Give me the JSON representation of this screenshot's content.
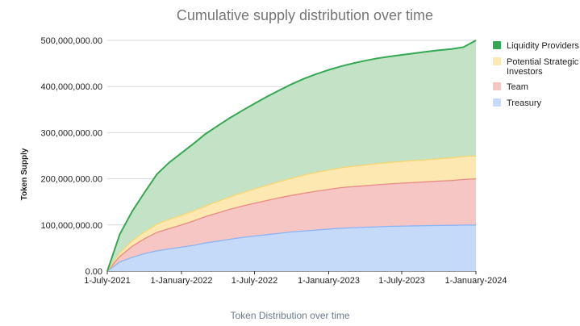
{
  "chart_data": {
    "type": "area",
    "stacked": true,
    "title": "Cumulative supply distribution over time",
    "ylabel": "Token Supply",
    "xlabel": "",
    "x_ticks": [
      "1-July-2021",
      "1-January-2022",
      "1-July-2022",
      "1-January-2023",
      "1-July-2023",
      "1-January-2024"
    ],
    "y_ticks": [
      "0.00",
      "100,000,000.00",
      "200,000,000.00",
      "300,000,000.00",
      "400,000,000.00",
      "500,000,000.00"
    ],
    "ylim": [
      0,
      500000000
    ],
    "grid": true,
    "legend_position": "right",
    "x": [
      "2021-07-01",
      "2021-08-01",
      "2021-09-01",
      "2021-10-01",
      "2021-11-01",
      "2021-12-01",
      "2022-01-01",
      "2022-02-01",
      "2022-03-01",
      "2022-04-01",
      "2022-05-01",
      "2022-06-01",
      "2022-07-01",
      "2022-08-01",
      "2022-09-01",
      "2022-10-01",
      "2022-11-01",
      "2022-12-01",
      "2023-01-01",
      "2023-02-01",
      "2023-03-01",
      "2023-04-01",
      "2023-05-01",
      "2023-06-01",
      "2023-07-01",
      "2023-08-01",
      "2023-09-01",
      "2023-10-01",
      "2023-11-01",
      "2023-12-01",
      "2024-01-01"
    ],
    "series": [
      {
        "name": "Treasury",
        "color": "#c5d9f8",
        "values": [
          0,
          20000000,
          30000000,
          38000000,
          44000000,
          48000000,
          52000000,
          56000000,
          61000000,
          65000000,
          69000000,
          73000000,
          76000000,
          79000000,
          82000000,
          85000000,
          87000000,
          89000000,
          91000000,
          93000000,
          94000000,
          95000000,
          96000000,
          97000000,
          97500000,
          98000000,
          98500000,
          99000000,
          99300000,
          99700000,
          100000000
        ]
      },
      {
        "name": "Team",
        "color": "#f6c6c4",
        "values": [
          0,
          12000000,
          24000000,
          32000000,
          40000000,
          44000000,
          48000000,
          53000000,
          57000000,
          61000000,
          65000000,
          68000000,
          71000000,
          74000000,
          77000000,
          79000000,
          82000000,
          84000000,
          86000000,
          88000000,
          89000000,
          90000000,
          91000000,
          92000000,
          93000000,
          94000000,
          95000000,
          96000000,
          97000000,
          99000000,
          100000000
        ]
      },
      {
        "name": "Potential Strategic Investors",
        "color": "#fce8b0",
        "values": [
          0,
          8000000,
          12000000,
          15000000,
          18000000,
          20000000,
          21000000,
          22000000,
          23000000,
          25000000,
          27000000,
          29000000,
          31000000,
          33000000,
          35000000,
          37000000,
          39000000,
          41000000,
          42000000,
          43000000,
          44000000,
          45000000,
          46000000,
          46500000,
          47000000,
          47500000,
          48000000,
          48500000,
          49000000,
          49500000,
          50000000
        ]
      },
      {
        "name": "Liquidity Providers",
        "color": "#c4e3c6",
        "values": [
          0,
          40000000,
          64000000,
          85000000,
          108000000,
          123000000,
          135000000,
          146000000,
          156000000,
          164000000,
          171000000,
          178000000,
          185000000,
          192000000,
          198000000,
          204000000,
          209000000,
          213000000,
          217000000,
          220000000,
          223000000,
          226000000,
          228000000,
          229500000,
          231000000,
          232500000,
          234000000,
          235000000,
          236000000,
          237000000,
          250000000
        ]
      }
    ]
  },
  "legend": [
    {
      "label": "Liquidity Providers",
      "color": "#34a853"
    },
    {
      "label": "Potential Strategic Investors",
      "color": "#fce8b2"
    },
    {
      "label": "Team",
      "color": "#f4c7c3"
    },
    {
      "label": "Treasury",
      "color": "#c6dafc"
    }
  ],
  "caption": "Token Distribution over time"
}
